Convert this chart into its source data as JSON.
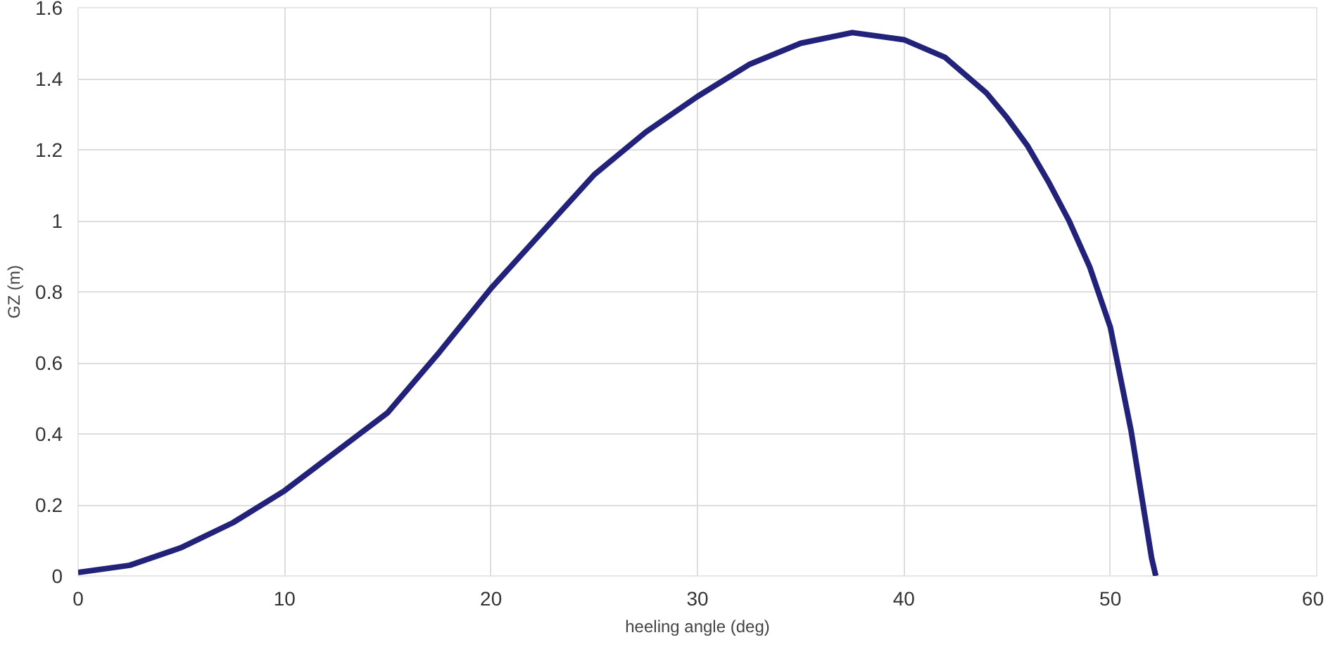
{
  "chart_data": {
    "type": "line",
    "xlabel": "heeling angle (deg)",
    "ylabel": "GZ (m)",
    "x": [
      0,
      2.5,
      5,
      7.5,
      10,
      12.5,
      15,
      17.5,
      20,
      22.5,
      25,
      27.5,
      30,
      32.5,
      35,
      37.5,
      40,
      42,
      44,
      45,
      46,
      47,
      48,
      49,
      50,
      51,
      52,
      52.2
    ],
    "series": [
      {
        "color": "#22227a",
        "values": [
          0.01,
          0.03,
          0.08,
          0.15,
          0.24,
          0.35,
          0.46,
          0.63,
          0.81,
          0.97,
          1.13,
          1.25,
          1.35,
          1.44,
          1.5,
          1.53,
          1.51,
          1.46,
          1.36,
          1.29,
          1.21,
          1.11,
          1.0,
          0.87,
          0.7,
          0.41,
          0.05,
          0.0
        ]
      }
    ],
    "xlim": [
      0,
      60
    ],
    "xticks": [
      0,
      10,
      20,
      30,
      40,
      50,
      60
    ],
    "ylim": [
      0,
      1.6
    ],
    "yticks": [
      0,
      0.2,
      0.4,
      0.6,
      0.8,
      1,
      1.2,
      1.4,
      1.6
    ],
    "grid": true,
    "marker": "none",
    "line_style": "solid"
  }
}
